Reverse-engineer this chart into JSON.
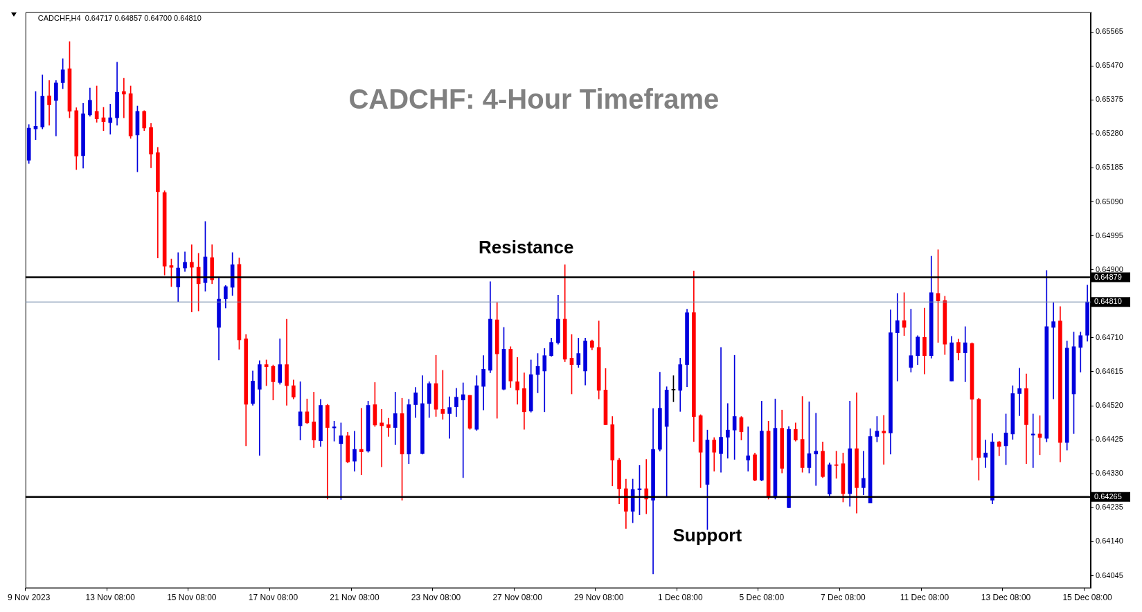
{
  "chart_data": {
    "type": "candlestick",
    "title": "CADCHF: 4-Hour Timeframe",
    "subtitle": "CADCHF,H4  0.64717 0.64857 0.64700 0.64810",
    "annotations": [
      "Resistance",
      "Support"
    ],
    "categories": [
      "9 Nov 2023",
      null,
      null,
      null,
      null,
      null,
      null,
      null,
      null,
      null,
      null,
      null,
      "13 Nov 08:00",
      null,
      null,
      null,
      null,
      null,
      null,
      null,
      null,
      null,
      null,
      null,
      "15 Nov 08:00",
      null,
      null,
      null,
      null,
      null,
      null,
      null,
      null,
      null,
      null,
      null,
      "17 Nov 08:00",
      null,
      null,
      null,
      null,
      null,
      null,
      null,
      null,
      null,
      null,
      null,
      "21 Nov 08:00",
      null,
      null,
      null,
      null,
      null,
      null,
      null,
      null,
      null,
      null,
      null,
      "23 Nov 08:00",
      null,
      null,
      null,
      null,
      null,
      null,
      null,
      null,
      null,
      null,
      null,
      "27 Nov 08:00",
      null,
      null,
      null,
      null,
      null,
      null,
      null,
      null,
      null,
      null,
      null,
      "29 Nov 08:00",
      null,
      null,
      null,
      null,
      null,
      null,
      null,
      null,
      null,
      null,
      null,
      "1 Dec 08:00",
      null,
      null,
      null,
      null,
      null,
      null,
      null,
      null,
      null,
      null,
      null,
      "5 Dec 08:00",
      null,
      null,
      null,
      null,
      null,
      null,
      null,
      null,
      null,
      null,
      null,
      "7 Dec 08:00",
      null,
      null,
      null,
      null,
      null,
      null,
      null,
      null,
      null,
      null,
      null,
      "11 Dec 08:00",
      null,
      null,
      null,
      null,
      null,
      null,
      null,
      null,
      null,
      null,
      null,
      "13 Dec 08:00",
      null,
      null,
      null,
      null,
      null,
      null,
      null,
      null,
      null,
      null,
      null,
      "15 Dec 08:00"
    ],
    "ohlc": [
      [
        0.65206,
        0.65306,
        0.65197,
        0.65296
      ],
      [
        0.65294,
        0.65398,
        0.65264,
        0.65301
      ],
      [
        0.65299,
        0.65445,
        0.65294,
        0.65385
      ],
      [
        0.65386,
        0.65429,
        0.65304,
        0.65361
      ],
      [
        0.65373,
        0.65429,
        0.65274,
        0.65422
      ],
      [
        0.65423,
        0.6549,
        0.65406,
        0.65459
      ],
      [
        0.65462,
        0.65538,
        0.65325,
        0.65343
      ],
      [
        0.65345,
        0.65353,
        0.6518,
        0.65218
      ],
      [
        0.65219,
        0.65365,
        0.65184,
        0.65336
      ],
      [
        0.65333,
        0.65408,
        0.65329,
        0.65374
      ],
      [
        0.65343,
        0.65414,
        0.65312,
        0.65322
      ],
      [
        0.65325,
        0.65354,
        0.65289,
        0.65314
      ],
      [
        0.65311,
        0.65363,
        0.65279,
        0.65325
      ],
      [
        0.65325,
        0.6548,
        0.65304,
        0.65396
      ],
      [
        0.65398,
        0.65435,
        0.65325,
        0.65391
      ],
      [
        0.65392,
        0.65414,
        0.65267,
        0.65274
      ],
      [
        0.65277,
        0.65358,
        0.65174,
        0.65343
      ],
      [
        0.65343,
        0.65345,
        0.65289,
        0.65296
      ],
      [
        0.65298,
        0.65309,
        0.65185,
        0.65223
      ],
      [
        0.65227,
        0.65242,
        0.64933,
        0.65118
      ],
      [
        0.65116,
        0.65121,
        0.64885,
        0.6491
      ],
      [
        0.64912,
        0.6493,
        0.64853,
        0.64907
      ],
      [
        0.64852,
        0.64948,
        0.64811,
        0.64905
      ],
      [
        0.64905,
        0.6495,
        0.64895,
        0.64921
      ],
      [
        0.64921,
        0.6497,
        0.64782,
        0.64907
      ],
      [
        0.64907,
        0.64946,
        0.64785,
        0.64861
      ],
      [
        0.64864,
        0.65035,
        0.6484,
        0.64936
      ],
      [
        0.64934,
        0.6497,
        0.64861,
        0.64872
      ],
      [
        0.64739,
        0.64877,
        0.64648,
        0.64818
      ],
      [
        0.64819,
        0.64856,
        0.64793,
        0.64853
      ],
      [
        0.64851,
        0.64948,
        0.64828,
        0.64914
      ],
      [
        0.64915,
        0.64933,
        0.64678,
        0.64704
      ],
      [
        0.64707,
        0.64719,
        0.64408,
        0.64524
      ],
      [
        0.64526,
        0.64617,
        0.64521,
        0.64589
      ],
      [
        0.64566,
        0.64646,
        0.64381,
        0.64635
      ],
      [
        0.64635,
        0.64648,
        0.64576,
        0.64629
      ],
      [
        0.6463,
        0.64634,
        0.64536,
        0.64587
      ],
      [
        0.64585,
        0.64707,
        0.6458,
        0.64635
      ],
      [
        0.64635,
        0.64762,
        0.64521,
        0.64576
      ],
      [
        0.64576,
        0.64592,
        0.64539,
        0.64544
      ],
      [
        0.64464,
        0.64587,
        0.64424,
        0.64503
      ],
      [
        0.64503,
        0.64539,
        0.6447,
        0.64472
      ],
      [
        0.64475,
        0.64558,
        0.64403,
        0.64424
      ],
      [
        0.64422,
        0.64538,
        0.64406,
        0.64521
      ],
      [
        0.64521,
        0.64524,
        0.64259,
        0.64459
      ],
      [
        0.64458,
        0.64477,
        0.64421,
        0.64461
      ],
      [
        0.64414,
        0.64472,
        0.64258,
        0.64436
      ],
      [
        0.64436,
        0.64446,
        0.6436,
        0.64363
      ],
      [
        0.64365,
        0.64449,
        0.64337,
        0.64398
      ],
      [
        0.64398,
        0.64513,
        0.64327,
        0.64391
      ],
      [
        0.64393,
        0.64533,
        0.6439,
        0.64521
      ],
      [
        0.64523,
        0.64585,
        0.64462,
        0.64466
      ],
      [
        0.64472,
        0.6451,
        0.64349,
        0.64464
      ],
      [
        0.64467,
        0.64485,
        0.64434,
        0.64459
      ],
      [
        0.64459,
        0.64558,
        0.64411,
        0.64498
      ],
      [
        0.64498,
        0.64541,
        0.64256,
        0.64385
      ],
      [
        0.64385,
        0.64538,
        0.64358,
        0.64523
      ],
      [
        0.64523,
        0.64571,
        0.64487,
        0.64556
      ],
      [
        0.64386,
        0.64604,
        0.64385,
        0.64526
      ],
      [
        0.64526,
        0.64587,
        0.64487,
        0.64582
      ],
      [
        0.64582,
        0.64661,
        0.6449,
        0.6451
      ],
      [
        0.6451,
        0.64619,
        0.64482,
        0.64498
      ],
      [
        0.64498,
        0.64545,
        0.64429,
        0.64515
      ],
      [
        0.64517,
        0.64569,
        0.6449,
        0.64544
      ],
      [
        0.64536,
        0.64584,
        0.64319,
        0.64551
      ],
      [
        0.64549,
        0.64549,
        0.64454,
        0.64457
      ],
      [
        0.64454,
        0.64604,
        0.64451,
        0.64576
      ],
      [
        0.64574,
        0.6466,
        0.64508,
        0.64622
      ],
      [
        0.64619,
        0.64867,
        0.64612,
        0.64762
      ],
      [
        0.6476,
        0.64808,
        0.64485,
        0.64665
      ],
      [
        0.64566,
        0.64739,
        0.64564,
        0.64678
      ],
      [
        0.64678,
        0.64685,
        0.64571,
        0.64589
      ],
      [
        0.64587,
        0.64655,
        0.64524,
        0.64564
      ],
      [
        0.64568,
        0.64612,
        0.64454,
        0.64503
      ],
      [
        0.64505,
        0.64648,
        0.64502,
        0.64607
      ],
      [
        0.64607,
        0.64666,
        0.64556,
        0.6463
      ],
      [
        0.64617,
        0.6468,
        0.64503,
        0.6466
      ],
      [
        0.6466,
        0.64709,
        0.64658,
        0.64697
      ],
      [
        0.64696,
        0.64829,
        0.64692,
        0.64762
      ],
      [
        0.64762,
        0.64914,
        0.64643,
        0.6465
      ],
      [
        0.64653,
        0.64719,
        0.64553,
        0.64635
      ],
      [
        0.64635,
        0.64709,
        0.64627,
        0.64666
      ],
      [
        0.64617,
        0.64709,
        0.64578,
        0.64701
      ],
      [
        0.64701,
        0.64704,
        0.64676,
        0.64683
      ],
      [
        0.64683,
        0.64757,
        0.64539,
        0.64563
      ],
      [
        0.64564,
        0.64624,
        0.64467,
        0.64467
      ],
      [
        0.64467,
        0.6449,
        0.64296,
        0.64368
      ],
      [
        0.64368,
        0.64373,
        0.64246,
        0.64288
      ],
      [
        0.64288,
        0.64315,
        0.64177,
        0.64225
      ],
      [
        0.64225,
        0.64315,
        0.64193,
        0.64286
      ],
      [
        0.64285,
        0.64353,
        0.64215,
        0.64288
      ],
      [
        0.64288,
        0.6437,
        0.64218,
        0.64259
      ],
      [
        0.64256,
        0.64512,
        0.6405,
        0.64398
      ],
      [
        0.64398,
        0.64614,
        0.64393,
        0.64513
      ],
      [
        0.64462,
        0.64573,
        0.64266,
        0.64564
      ],
      [
        0.64564,
        0.64604,
        0.64531,
        0.64564
      ],
      [
        0.64563,
        0.64653,
        0.64504,
        0.64635
      ],
      [
        0.64635,
        0.6479,
        0.64573,
        0.6478
      ],
      [
        0.6478,
        0.64897,
        0.6442,
        0.6449
      ],
      [
        0.64492,
        0.64495,
        0.64291,
        0.6439
      ],
      [
        0.643,
        0.64452,
        0.64174,
        0.64424
      ],
      [
        0.64424,
        0.64431,
        0.64337,
        0.6439
      ],
      [
        0.64386,
        0.64683,
        0.64334,
        0.64432
      ],
      [
        0.64432,
        0.64526,
        0.64373,
        0.64452
      ],
      [
        0.64452,
        0.64661,
        0.6437,
        0.6449
      ],
      [
        0.64487,
        0.6449,
        0.64424,
        0.64447
      ],
      [
        0.64368,
        0.64461,
        0.64337,
        0.6438
      ],
      [
        0.64383,
        0.64388,
        0.6431,
        0.64312
      ],
      [
        0.64312,
        0.64533,
        0.6431,
        0.64449
      ],
      [
        0.64449,
        0.64477,
        0.64259,
        0.64266
      ],
      [
        0.64266,
        0.64539,
        0.64259,
        0.64457
      ],
      [
        0.64457,
        0.64508,
        0.64332,
        0.64345
      ],
      [
        0.64235,
        0.64462,
        0.64235,
        0.64454
      ],
      [
        0.64454,
        0.64472,
        0.64421,
        0.64424
      ],
      [
        0.64426,
        0.64546,
        0.64334,
        0.64347
      ],
      [
        0.64347,
        0.64531,
        0.64332,
        0.64386
      ],
      [
        0.64385,
        0.64499,
        0.64297,
        0.64393
      ],
      [
        0.64393,
        0.64419,
        0.64319,
        0.64322
      ],
      [
        0.64273,
        0.6436,
        0.64268,
        0.64355
      ],
      [
        0.64355,
        0.64393,
        0.64317,
        0.64353
      ],
      [
        0.64358,
        0.64388,
        0.64251,
        0.64274
      ],
      [
        0.64274,
        0.64533,
        0.64239,
        0.644
      ],
      [
        0.644,
        0.64556,
        0.6422,
        0.64291
      ],
      [
        0.64291,
        0.64393,
        0.64271,
        0.64317
      ],
      [
        0.64248,
        0.64456,
        0.64248,
        0.64434
      ],
      [
        0.64434,
        0.6449,
        0.64419,
        0.64449
      ],
      [
        0.64449,
        0.64493,
        0.64356,
        0.64444
      ],
      [
        0.64444,
        0.64788,
        0.64385,
        0.64724
      ],
      [
        0.64724,
        0.64834,
        0.64589,
        0.64758
      ],
      [
        0.64758,
        0.64836,
        0.64716,
        0.64739
      ],
      [
        0.64627,
        0.6479,
        0.64614,
        0.6466
      ],
      [
        0.6466,
        0.64716,
        0.64635,
        0.64712
      ],
      [
        0.64711,
        0.64793,
        0.64609,
        0.6466
      ],
      [
        0.6466,
        0.64938,
        0.64653,
        0.64836
      ],
      [
        0.64834,
        0.64956,
        0.64697,
        0.64813
      ],
      [
        0.64814,
        0.64826,
        0.64663,
        0.64692
      ],
      [
        0.64589,
        0.64714,
        0.64589,
        0.64696
      ],
      [
        0.64697,
        0.64706,
        0.64648,
        0.64668
      ],
      [
        0.64668,
        0.64741,
        0.64587,
        0.64696
      ],
      [
        0.64694,
        0.64696,
        0.64368,
        0.64538
      ],
      [
        0.64538,
        0.64541,
        0.64312,
        0.64375
      ],
      [
        0.64376,
        0.64424,
        0.64347,
        0.64388
      ],
      [
        0.64256,
        0.64442,
        0.64246,
        0.64419
      ],
      [
        0.64419,
        0.64421,
        0.6438,
        0.64406
      ],
      [
        0.64408,
        0.64497,
        0.64355,
        0.64444
      ],
      [
        0.64441,
        0.64576,
        0.64426,
        0.64554
      ],
      [
        0.64554,
        0.64625,
        0.64492,
        0.64568
      ],
      [
        0.64568,
        0.64609,
        0.64358,
        0.64467
      ],
      [
        0.64438,
        0.64497,
        0.64347,
        0.64441
      ],
      [
        0.64441,
        0.64492,
        0.64383,
        0.64431
      ],
      [
        0.64429,
        0.64898,
        0.64419,
        0.64741
      ],
      [
        0.64739,
        0.64808,
        0.64539,
        0.64755
      ],
      [
        0.64757,
        0.64797,
        0.64363,
        0.64417
      ],
      [
        0.64417,
        0.64701,
        0.64396,
        0.64681
      ],
      [
        0.64553,
        0.64726,
        0.64442,
        0.64685
      ],
      [
        0.64683,
        0.64726,
        0.64614,
        0.64716
      ],
      [
        0.64717,
        0.64857,
        0.647,
        0.6481
      ]
    ],
    "colors": [
      "#0000dd",
      "#0000dd",
      "#0000dd",
      "#ff0000",
      "#0000dd",
      "#0000dd",
      "#ff0000",
      "#ff0000",
      "#0000dd",
      "#0000dd",
      "#ff0000",
      "#ff0000",
      "#0000dd",
      "#0000dd",
      "#ff0000",
      "#ff0000",
      "#0000dd",
      "#ff0000",
      "#ff0000",
      "#ff0000",
      "#ff0000",
      "#ff0000",
      "#0000dd",
      "#0000dd",
      "#ff0000",
      "#ff0000",
      "#0000dd",
      "#ff0000",
      "#0000dd",
      "#0000dd",
      "#0000dd",
      "#ff0000",
      "#ff0000",
      "#0000dd",
      "#0000dd",
      "#ff0000",
      "#ff0000",
      "#0000dd",
      "#ff0000",
      "#ff0000",
      "#0000dd",
      "#ff0000",
      "#ff0000",
      "#0000dd",
      "#ff0000",
      "#0000dd",
      "#0000dd",
      "#ff0000",
      "#0000dd",
      "#ff0000",
      "#0000dd",
      "#ff0000",
      "#ff0000",
      "#ff0000",
      "#0000dd",
      "#ff0000",
      "#0000dd",
      "#0000dd",
      "#0000dd",
      "#0000dd",
      "#ff0000",
      "#ff0000",
      "#0000dd",
      "#0000dd",
      "#0000dd",
      "#ff0000",
      "#0000dd",
      "#0000dd",
      "#0000dd",
      "#ff0000",
      "#0000dd",
      "#ff0000",
      "#ff0000",
      "#ff0000",
      "#0000dd",
      "#0000dd",
      "#0000dd",
      "#0000dd",
      "#0000dd",
      "#ff0000",
      "#ff0000",
      "#0000dd",
      "#0000dd",
      "#ff0000",
      "#ff0000",
      "#ff0000",
      "#ff0000",
      "#ff0000",
      "#ff0000",
      "#0000dd",
      "#0000dd",
      "#ff0000",
      "#0000dd",
      "#0000dd",
      "#0000dd",
      "#000000",
      "#0000dd",
      "#0000dd",
      "#ff0000",
      "#ff0000",
      "#0000dd",
      "#ff0000",
      "#0000dd",
      "#0000dd",
      "#0000dd",
      "#ff0000",
      "#0000dd",
      "#ff0000",
      "#0000dd",
      "#ff0000",
      "#0000dd",
      "#ff0000",
      "#0000dd",
      "#ff0000",
      "#ff0000",
      "#0000dd",
      "#0000dd",
      "#ff0000",
      "#0000dd",
      "#ff0000",
      "#ff0000",
      "#0000dd",
      "#ff0000",
      "#0000dd",
      "#0000dd",
      "#0000dd",
      "#ff0000",
      "#0000dd",
      "#0000dd",
      "#ff0000",
      "#0000dd",
      "#0000dd",
      "#ff0000",
      "#0000dd",
      "#ff0000",
      "#ff0000",
      "#0000dd",
      "#ff0000",
      "#0000dd",
      "#ff0000",
      "#ff0000",
      "#0000dd",
      "#0000dd",
      "#ff0000",
      "#0000dd",
      "#0000dd",
      "#0000dd",
      "#ff0000",
      "#0000dd",
      "#ff0000",
      "#0000dd",
      "#0000dd",
      "#ff0000",
      "#0000dd",
      "#0000dd",
      "#0000dd",
      "#0000dd"
    ],
    "ylim": [
      0.6401,
      0.6562
    ],
    "yticks": [
      0.65565,
      {
        "value": 0.6547,
        "label": "0.65470"
      },
      0.65375,
      {
        "value": 0.6528,
        "label": "0.65280"
      },
      0.65185,
      {
        "value": 0.6509,
        "label": "0.65090"
      },
      0.64995,
      {
        "value": 0.649,
        "label": "0.64900"
      },
      {
        "value": 0.6471,
        "label": "0.64710"
      },
      0.64615,
      {
        "value": 0.6452,
        "label": "0.64520"
      },
      0.64425,
      {
        "value": 0.6433,
        "label": "0.64330"
      },
      0.64235,
      {
        "value": 0.6414,
        "label": "0.64140"
      },
      0.64045
    ],
    "ref_lines": [
      {
        "axis": "y",
        "value": 0.64879,
        "label": "0.64879",
        "color": "#000000"
      },
      {
        "axis": "y",
        "value": 0.64265,
        "label": "0.64265",
        "color": "#000000"
      },
      {
        "axis": "y",
        "value": 0.6481,
        "label": "0.64810",
        "color": "#7088a8"
      }
    ]
  }
}
